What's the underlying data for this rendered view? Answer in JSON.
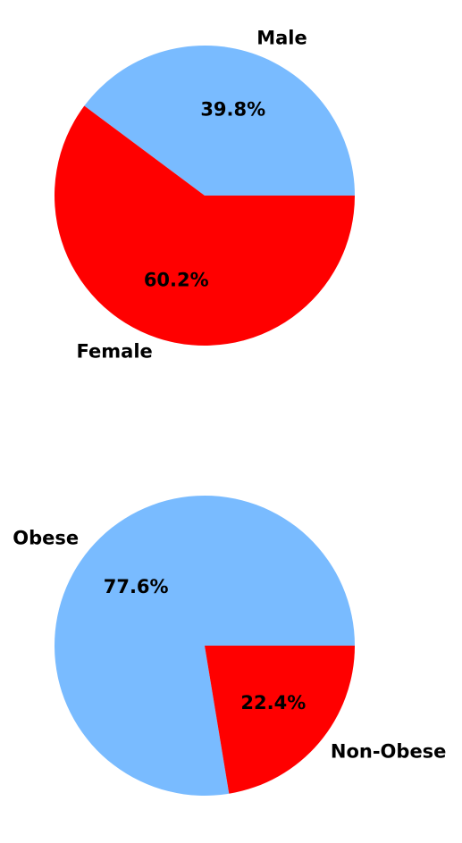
{
  "chart_data": [
    {
      "type": "pie",
      "categories": [
        "Male",
        "Female"
      ],
      "values": [
        39.8,
        60.2
      ],
      "percent_labels": [
        "39.8%",
        "60.2%"
      ],
      "colors": [
        "#79bbff",
        "#ff0000"
      ],
      "start_angle_deg": 0,
      "direction": "counterclockwise",
      "legend": "none"
    },
    {
      "type": "pie",
      "categories": [
        "Obese",
        "Non-Obese"
      ],
      "values": [
        77.6,
        22.4
      ],
      "percent_labels": [
        "77.6%",
        "22.4%"
      ],
      "colors": [
        "#79bbff",
        "#ff0000"
      ],
      "start_angle_deg": 0,
      "direction": "counterclockwise",
      "legend": "none"
    }
  ]
}
